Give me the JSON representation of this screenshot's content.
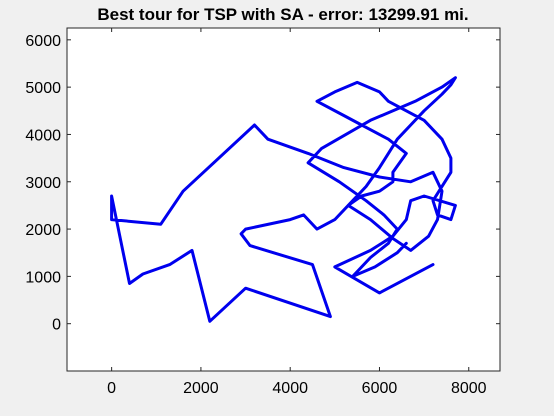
{
  "chart_data": {
    "type": "line",
    "title": "Best tour for TSP with SA - error: 13299.91 mi.",
    "xlabel": "",
    "ylabel": "",
    "xlim": [
      -1000,
      8700
    ],
    "ylim": [
      -1000,
      6250
    ],
    "xticks": [
      0,
      2000,
      4000,
      6000,
      8000
    ],
    "xtick_labels": [
      "0",
      "2000",
      "4000",
      "6000",
      "8000"
    ],
    "yticks": [
      0,
      1000,
      2000,
      3000,
      4000,
      5000,
      6000
    ],
    "ytick_labels": [
      "0",
      "1000",
      "2000",
      "3000",
      "4000",
      "5000",
      "6000"
    ],
    "grid": false,
    "line_color": "#0000ee",
    "series": [
      {
        "x": [
          7200,
          6000,
          5000,
          5800,
          6300,
          6600,
          6700,
          7000,
          7700,
          7600,
          7300,
          7200,
          7600,
          7600,
          7400,
          7000,
          6200,
          6000,
          5500,
          5000,
          4600,
          5200,
          5600,
          6200,
          6600,
          6300,
          6300,
          6000,
          5600,
          5300,
          5800,
          6300,
          6700,
          7100,
          7300,
          7400,
          7200,
          6700,
          6000,
          5200,
          4400,
          3500,
          3200,
          1600,
          1100,
          0,
          0,
          400,
          700,
          1300,
          1800,
          2200,
          3000,
          4900,
          4500,
          3100,
          2900,
          3000,
          4000,
          4300,
          4600,
          5000,
          5400,
          5700,
          6000,
          6200,
          6400,
          6700,
          7000,
          7400,
          7600,
          7700,
          7400,
          6800,
          5800,
          4700,
          4400,
          5100,
          5700,
          6100,
          6400,
          6200,
          5800,
          5500,
          5400,
          5900,
          6400,
          6600
        ],
        "y": [
          1250,
          650,
          1200,
          1550,
          1850,
          2200,
          2600,
          2700,
          2500,
          2200,
          2300,
          2600,
          3200,
          3500,
          3900,
          4300,
          4700,
          4900,
          5100,
          4900,
          4700,
          4400,
          4200,
          3900,
          3600,
          3200,
          3000,
          2800,
          2700,
          2500,
          2200,
          1800,
          1550,
          1850,
          2200,
          2800,
          3200,
          3000,
          3100,
          3300,
          3600,
          3900,
          4200,
          2800,
          2100,
          2200,
          2700,
          850,
          1050,
          1250,
          1550,
          50,
          750,
          150,
          1250,
          1650,
          1900,
          2000,
          2200,
          2300,
          2000,
          2200,
          2600,
          2900,
          3300,
          3600,
          3900,
          4200,
          4500,
          4850,
          5050,
          5200,
          5000,
          4700,
          4300,
          3700,
          3400,
          3000,
          2600,
          2300,
          2000,
          1700,
          1400,
          1100,
          1000,
          1200,
          1500,
          1700
        ]
      }
    ]
  }
}
